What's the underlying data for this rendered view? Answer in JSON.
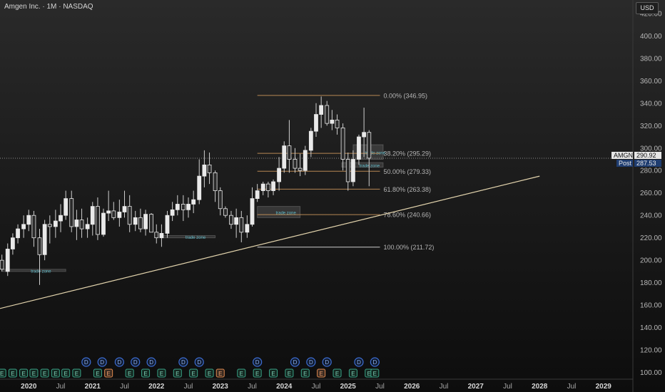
{
  "header": {
    "symbol_name": "Amgen Inc.",
    "interval": "1M",
    "exchange": "NASDAQ",
    "separator": "·"
  },
  "currency_label": "USD",
  "price_tags": {
    "ticker": "AMGN",
    "last_price": "290.92",
    "post_label": "Post",
    "post_price": "287.53"
  },
  "colors": {
    "up_candle": "#e9e9e9",
    "down_candle": "#2a2a2a",
    "wick": "#cfcfcf",
    "fib_line": "#c8935a",
    "fib_text": "#b5b5b5",
    "trendline": "#e3d4ad",
    "trade_zone": "#9a9a9a",
    "trade_zone_text": "#5fb9c7",
    "post_tag": "#1f3d70",
    "dotted_price_line": "#8a8a8a"
  },
  "chart_data": {
    "type": "candlestick",
    "title": "Amgen Inc. · 1M · NASDAQ",
    "y_axis": {
      "ticks": [
        100,
        120,
        140,
        160,
        180,
        200,
        220,
        240,
        260,
        280,
        300,
        320,
        340,
        360,
        380,
        400,
        420
      ],
      "labels": [
        "100.00",
        "120.00",
        "140.00",
        "160.00",
        "180.00",
        "200.00",
        "220.00",
        "240.00",
        "260.00",
        "280.00",
        "300.00",
        "320.00",
        "340.00",
        "360.00",
        "380.00",
        "400.00",
        "420.00"
      ],
      "range": [
        94,
        432
      ],
      "side": "right"
    },
    "x_axis": {
      "labels": [
        "2020",
        "Jul",
        "2021",
        "Jul",
        "2022",
        "Jul",
        "2023",
        "Jul",
        "2024",
        "Jul",
        "2025",
        "Jul",
        "2026",
        "Jul",
        "2027",
        "Jul",
        "2028",
        "Jul",
        "2029"
      ],
      "label_dates": [
        2020.0,
        2020.5,
        2021.0,
        2021.5,
        2022.0,
        2022.5,
        2023.0,
        2023.5,
        2024.0,
        2024.5,
        2025.0,
        2025.5,
        2026.0,
        2026.5,
        2027.0,
        2027.5,
        2028.0,
        2028.5,
        2029.0
      ],
      "bold_years": [
        "2020",
        "2021",
        "2022",
        "2023",
        "2024",
        "2025",
        "2026",
        "2027",
        "2028",
        "2029"
      ],
      "range": [
        2019.55,
        2029.45
      ]
    },
    "candles": [
      [
        2019.58,
        200,
        205,
        190,
        192
      ],
      [
        2019.67,
        190,
        215,
        186,
        210
      ],
      [
        2019.75,
        210,
        224,
        205,
        220
      ],
      [
        2019.83,
        220,
        232,
        215,
        228
      ],
      [
        2019.92,
        228,
        240,
        220,
        232
      ],
      [
        2020.0,
        232,
        245,
        226,
        240
      ],
      [
        2020.08,
        240,
        244,
        212,
        220
      ],
      [
        2020.17,
        220,
        228,
        178,
        205
      ],
      [
        2020.25,
        205,
        236,
        200,
        232
      ],
      [
        2020.33,
        232,
        240,
        215,
        230
      ],
      [
        2020.42,
        230,
        245,
        220,
        235
      ],
      [
        2020.5,
        235,
        250,
        225,
        240
      ],
      [
        2020.58,
        240,
        262,
        236,
        255
      ],
      [
        2020.67,
        255,
        262,
        225,
        230
      ],
      [
        2020.75,
        230,
        245,
        218,
        236
      ],
      [
        2020.83,
        236,
        246,
        220,
        228
      ],
      [
        2020.92,
        228,
        238,
        220,
        232
      ],
      [
        2021.0,
        232,
        252,
        222,
        248
      ],
      [
        2021.08,
        248,
        256,
        218,
        223
      ],
      [
        2021.17,
        223,
        246,
        221,
        242
      ],
      [
        2021.25,
        242,
        262,
        235,
        244
      ],
      [
        2021.33,
        244,
        252,
        236,
        238
      ],
      [
        2021.42,
        238,
        254,
        230,
        243
      ],
      [
        2021.5,
        243,
        262,
        238,
        248
      ],
      [
        2021.58,
        248,
        258,
        225,
        232
      ],
      [
        2021.67,
        232,
        244,
        226,
        238
      ],
      [
        2021.75,
        238,
        246,
        225,
        228
      ],
      [
        2021.83,
        228,
        245,
        222,
        241
      ],
      [
        2021.92,
        241,
        242,
        227,
        225
      ],
      [
        2022.0,
        225,
        232,
        215,
        220
      ],
      [
        2022.08,
        220,
        232,
        212,
        224
      ],
      [
        2022.17,
        224,
        244,
        220,
        240
      ],
      [
        2022.25,
        240,
        252,
        235,
        245
      ],
      [
        2022.33,
        245,
        258,
        240,
        250
      ],
      [
        2022.42,
        250,
        258,
        235,
        245
      ],
      [
        2022.5,
        245,
        256,
        238,
        250
      ],
      [
        2022.58,
        250,
        262,
        242,
        254
      ],
      [
        2022.67,
        254,
        290,
        250,
        275
      ],
      [
        2022.75,
        275,
        298,
        265,
        285
      ],
      [
        2022.83,
        285,
        296,
        268,
        278
      ],
      [
        2022.92,
        278,
        280,
        252,
        262
      ],
      [
        2023.0,
        262,
        265,
        240,
        246
      ],
      [
        2023.08,
        246,
        248,
        238,
        240
      ],
      [
        2023.17,
        240,
        244,
        228,
        232
      ],
      [
        2023.25,
        232,
        246,
        220,
        238
      ],
      [
        2023.33,
        238,
        244,
        216,
        225
      ],
      [
        2023.42,
        225,
        240,
        220,
        232
      ],
      [
        2023.5,
        232,
        265,
        230,
        255
      ],
      [
        2023.58,
        255,
        268,
        252,
        262
      ],
      [
        2023.67,
        262,
        270,
        258,
        268
      ],
      [
        2023.75,
        268,
        270,
        256,
        262
      ],
      [
        2023.83,
        262,
        272,
        258,
        270
      ],
      [
        2023.92,
        270,
        292,
        262,
        282
      ],
      [
        2024.0,
        282,
        306,
        278,
        302
      ],
      [
        2024.08,
        302,
        325,
        278,
        290
      ],
      [
        2024.17,
        290,
        300,
        278,
        282
      ],
      [
        2024.25,
        282,
        295,
        275,
        280
      ],
      [
        2024.33,
        280,
        302,
        276,
        298
      ],
      [
        2024.42,
        298,
        318,
        292,
        315
      ],
      [
        2024.5,
        315,
        340,
        310,
        330
      ],
      [
        2024.58,
        330,
        346,
        318,
        338
      ],
      [
        2024.67,
        338,
        342,
        320,
        322
      ],
      [
        2024.75,
        322,
        334,
        316,
        325
      ],
      [
        2024.83,
        325,
        330,
        312,
        318
      ],
      [
        2024.92,
        318,
        322,
        280,
        290
      ],
      [
        2025.0,
        290,
        296,
        262,
        270
      ],
      [
        2025.08,
        270,
        298,
        266,
        290
      ],
      [
        2025.17,
        290,
        312,
        285,
        310
      ],
      [
        2025.25,
        310,
        336,
        292,
        314
      ],
      [
        2025.33,
        314,
        316,
        266,
        291
      ]
    ],
    "fib_levels": [
      {
        "ratio": "0.00%",
        "price": 346.95,
        "label": "0.00% (346.95)"
      },
      {
        "ratio": "38.20%",
        "price": 295.29,
        "label": "38.20% (295.29)"
      },
      {
        "ratio": "50.00%",
        "price": 279.33,
        "label": "50.00% (279.33)"
      },
      {
        "ratio": "61.80%",
        "price": 263.38,
        "label": "61.80% (263.38)"
      },
      {
        "ratio": "78.60%",
        "price": 240.66,
        "label": "78.60% (240.66)"
      },
      {
        "ratio": "100.00%",
        "price": 211.72,
        "label": "100.00% (211.72)"
      }
    ],
    "fib_start_date": 2023.58,
    "fib_end_date": 2025.5,
    "trendline": {
      "from": [
        2019.55,
        157
      ],
      "to": [
        2028.0,
        275
      ]
    },
    "last_price": 290.92,
    "trade_zones": [
      {
        "label": "trade zone",
        "date_start": 2019.58,
        "date_end": 2020.58,
        "price_low": 190,
        "price_high": 192
      },
      {
        "label": "trade zone",
        "date_start": 2022.08,
        "date_end": 2022.92,
        "price_low": 220,
        "price_high": 222
      },
      {
        "label": "trade zone",
        "date_start": 2023.58,
        "date_end": 2024.25,
        "price_low": 238,
        "price_high": 248
      },
      {
        "label": "trade zone",
        "date_start": 2024.9,
        "date_end": 2025.55,
        "price_low": 283,
        "price_high": 287
      },
      {
        "label": "trade zone",
        "date_start": 2025.08,
        "date_end": 2025.55,
        "price_low": 290,
        "price_high": 303
      }
    ],
    "events": {
      "dividends": [
        2020.9,
        2021.15,
        2021.42,
        2021.67,
        2021.92,
        2022.42,
        2022.67,
        2023.58,
        2024.17,
        2024.42,
        2024.67,
        2025.17,
        2025.42
      ],
      "earnings": [
        {
          "date": 2019.58,
          "highlight": false
        },
        {
          "date": 2019.75,
          "highlight": false
        },
        {
          "date": 2019.92,
          "highlight": false
        },
        {
          "date": 2020.08,
          "highlight": false
        },
        {
          "date": 2020.25,
          "highlight": false
        },
        {
          "date": 2020.42,
          "highlight": false
        },
        {
          "date": 2020.58,
          "highlight": false
        },
        {
          "date": 2020.75,
          "highlight": false
        },
        {
          "date": 2021.08,
          "highlight": false
        },
        {
          "date": 2021.25,
          "highlight": true
        },
        {
          "date": 2021.58,
          "highlight": false
        },
        {
          "date": 2021.83,
          "highlight": false
        },
        {
          "date": 2022.08,
          "highlight": false
        },
        {
          "date": 2022.33,
          "highlight": false
        },
        {
          "date": 2022.58,
          "highlight": false
        },
        {
          "date": 2022.83,
          "highlight": false
        },
        {
          "date": 2023.0,
          "highlight": true
        },
        {
          "date": 2023.33,
          "highlight": false
        },
        {
          "date": 2023.58,
          "highlight": false
        },
        {
          "date": 2023.83,
          "highlight": false
        },
        {
          "date": 2024.08,
          "highlight": false
        },
        {
          "date": 2024.33,
          "highlight": false
        },
        {
          "date": 2024.58,
          "highlight": true
        },
        {
          "date": 2024.83,
          "highlight": false
        },
        {
          "date": 2025.08,
          "highlight": false
        },
        {
          "date": 2025.33,
          "highlight": false
        },
        {
          "date": 2025.42,
          "highlight": false
        }
      ],
      "dividend_label": "D",
      "earnings_label": "E"
    },
    "grid": false
  }
}
